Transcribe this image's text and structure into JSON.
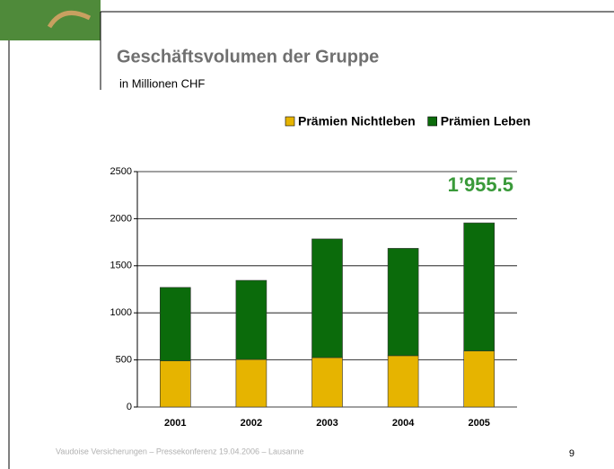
{
  "chart_data": {
    "type": "stacked_bar",
    "title": "Geschäftsvolumen der Gruppe",
    "subtitle": "in Millionen CHF",
    "annotation": "1’955.5",
    "footer": "Vaudoise Versicherungen – Pressekonferenz 19.04.2006 – Lausanne",
    "page_number": "9",
    "categories": [
      "2001",
      "2002",
      "2003",
      "2004",
      "2005"
    ],
    "series": [
      {
        "name": "Prämien Nichtleben",
        "color": "#e6b400",
        "values": [
          490,
          505,
          525,
          545,
          595
        ]
      },
      {
        "name": "Prämien Leben",
        "color": "#0b6b0b",
        "values": [
          780,
          840,
          1260,
          1140,
          1360.5
        ]
      }
    ],
    "ylim": [
      0,
      2500
    ],
    "yticks": [
      0,
      500,
      1000,
      1500,
      2000,
      2500
    ],
    "grid": true,
    "legend": "top-right"
  }
}
